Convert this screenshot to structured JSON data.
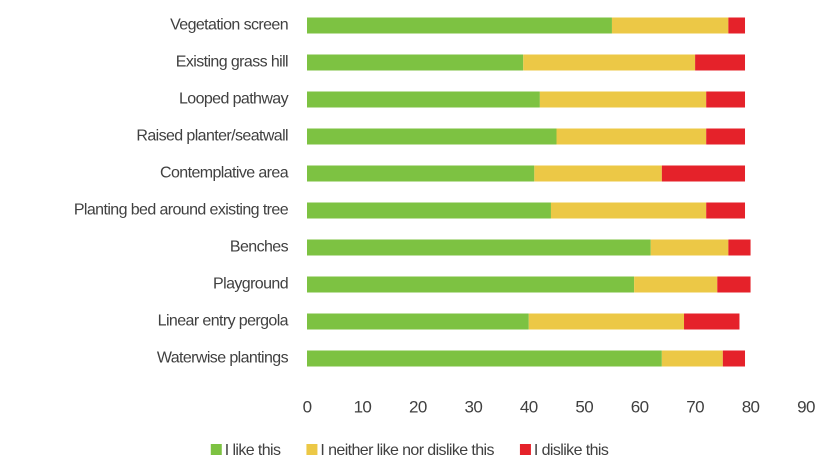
{
  "chart_data": {
    "type": "stacked-bar-horizontal",
    "categories": [
      "Vegetation screen",
      "Existing grass hill",
      "Looped pathway",
      "Raised planter/seatwall",
      "Contemplative area",
      "Planting bed around existing tree",
      "Benches",
      "Playground",
      "Linear entry pergola",
      "Waterwise plantings"
    ],
    "series": [
      {
        "name": "I like this",
        "color": "#7dc242",
        "values": [
          55,
          39,
          42,
          45,
          41,
          44,
          62,
          59,
          40,
          64
        ]
      },
      {
        "name": "I neither like nor dislike this",
        "color": "#ecc846",
        "values": [
          21,
          31,
          30,
          27,
          23,
          28,
          14,
          15,
          28,
          11
        ]
      },
      {
        "name": "I dislike this",
        "color": "#e5222a",
        "values": [
          3,
          9,
          7,
          7,
          15,
          7,
          4,
          6,
          10,
          4
        ]
      }
    ],
    "xlim": [
      0,
      90
    ],
    "xticks": [
      0,
      10,
      20,
      30,
      40,
      50,
      60,
      70,
      80,
      90
    ],
    "legend": "bottom",
    "grid": false
  }
}
